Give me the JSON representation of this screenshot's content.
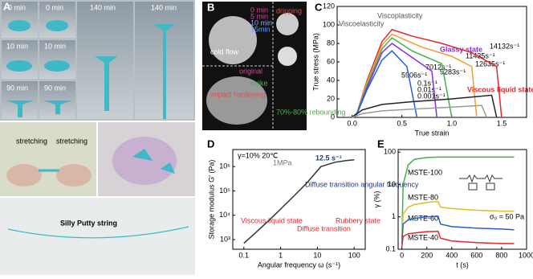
{
  "panels": [
    {
      "label": "A",
      "photo_labels": [
        "0 min",
        "0 min",
        "140 min",
        "140 min",
        "10 min",
        "10 min",
        "90 min",
        "90 min"
      ],
      "annotations": [
        "stretching",
        "stretching",
        "Silly Putty string"
      ]
    },
    {
      "label": "B",
      "annotations": [
        "0 min",
        "5 min",
        "10 min",
        "15min",
        "original",
        "cold flow",
        "impact hardening",
        "strike",
        "dripping",
        "70%-80% rebounding"
      ]
    },
    {
      "label": "C",
      "chart": {
        "type": "line",
        "xlabel": "True strain",
        "ylabel": "True stress (MPa)",
        "xlim": [
          -0.15,
          1.75
        ],
        "ylim": [
          0,
          120
        ],
        "xticks": [
          {
            "value": 0,
            "label": "0.0"
          },
          0.5,
          {
            "value": 1,
            "label": "1.0"
          },
          1.5
        ],
        "yticks": [
          0,
          20,
          40,
          60,
          80,
          100,
          120
        ],
        "annotations": [
          "Viscoelasticity",
          "Viscoplasticity",
          "Glassy state",
          "Viscous liquid state",
          "14132s⁻¹",
          "11435s⁻¹",
          "12635s⁻¹",
          "9283s⁻¹",
          "7012s⁻¹",
          "5906s⁻¹",
          "0.1s⁻¹",
          "0.01s⁻¹",
          "0.001s⁻¹"
        ],
        "series": [
          {
            "color": "#e8262a",
            "x": [
              0,
              0.05,
              0.15,
              0.3,
              0.4,
              0.6,
              0.9,
              1.2,
              1.45,
              1.5
            ],
            "values": [
              0,
              5,
              40,
              82,
              95,
              88,
              80,
              70,
              55,
              0
            ]
          },
          {
            "color": "#f39c34",
            "x": [
              0,
              0.05,
              0.15,
              0.3,
              0.4,
              0.7,
              1.0,
              1.2,
              1.25
            ],
            "values": [
              0,
              5,
              38,
              78,
              90,
              76,
              66,
              55,
              0
            ]
          },
          {
            "color": "#3cb44b",
            "x": [
              0,
              0.05,
              0.15,
              0.3,
              0.4,
              0.6,
              0.9,
              1.0
            ],
            "values": [
              0,
              5,
              35,
              74,
              86,
              72,
              58,
              0
            ]
          },
          {
            "color": "#8a2be2",
            "x": [
              0,
              0.05,
              0.15,
              0.3,
              0.4,
              0.6,
              0.8,
              0.85
            ],
            "values": [
              0,
              4,
              32,
              70,
              80,
              65,
              50,
              0
            ]
          },
          {
            "color": "#2a5fd6",
            "x": [
              0,
              0.05,
              0.15,
              0.3,
              0.4,
              0.55,
              0.65
            ],
            "values": [
              0,
              4,
              30,
              62,
              72,
              55,
              0
            ]
          },
          {
            "color": "#222222",
            "x": [
              0,
              0.1,
              0.3,
              0.6,
              1.0,
              1.4,
              1.45
            ],
            "values": [
              0,
              8,
              14,
              17,
              20,
              24,
              0
            ]
          },
          {
            "color": "#999999",
            "x": [
              0,
              0.1,
              0.3,
              0.6,
              1.0,
              1.3,
              1.35
            ],
            "values": [
              0,
              4,
              7,
              9,
              11,
              13,
              0
            ]
          }
        ]
      }
    },
    {
      "label": "D",
      "chart": {
        "type": "line",
        "xlabel": "Angular frequency ω (s⁻¹)",
        "ylabel": "Storage modulus G′ (Pa)",
        "xlog": true,
        "ylog": true,
        "xlim": [
          0.05,
          200
        ],
        "ylim": [
          400,
          5000000
        ],
        "xticks": [
          0.1,
          1,
          10,
          100
        ],
        "yticks": [
          {
            "value": 1000,
            "label": "10³"
          },
          {
            "value": 10000,
            "label": "10⁴"
          },
          {
            "value": 100000,
            "label": "10⁵"
          },
          {
            "value": 1000000,
            "label": "10⁶"
          }
        ],
        "annotations": [
          "γ=10% 20℃",
          "1MPa",
          "12.5 s⁻¹",
          "Diffuse transition angular frequency",
          "Viscous liquid state",
          "Diffuse transition",
          "Rubbery state"
        ],
        "series": [
          {
            "color": "#333333",
            "x": [
              0.1,
              0.2,
              0.5,
              1,
              2,
              5,
              12.5,
              30,
              60,
              100
            ],
            "values": [
              700,
              1800,
              6500,
              18000,
              50000,
              200000,
              1000000,
              1500000,
              1750000,
              1900000
            ]
          }
        ]
      }
    },
    {
      "label": "E",
      "chart": {
        "type": "line",
        "xlabel": "t (s)",
        "ylabel": "γ (%)",
        "ylog": true,
        "xlim": [
          -30,
          1000
        ],
        "ylim": [
          0.1,
          120
        ],
        "xticks": [
          0,
          200,
          400,
          600,
          800,
          1000
        ],
        "yticks": [
          0.1,
          1,
          10,
          100
        ],
        "annotations": [
          "MSTE-100",
          "MSTE-80",
          "MSTE-60",
          "MSTE-40",
          "σ₀ = 50 Pa"
        ],
        "series": [
          {
            "color": "#3cb44b",
            "x": [
              0,
              10,
              50,
              100,
              200,
              300,
              400,
              600,
              800,
              900
            ],
            "values": [
              0.2,
              10,
              40,
              60,
              68,
              70,
              70,
              70,
              70,
              70
            ]
          },
          {
            "color": "#e0c020",
            "x": [
              0,
              10,
              50,
              100,
              200,
              290,
              310,
              400,
              600,
              800,
              900
            ],
            "values": [
              0.2,
              1.2,
              2,
              2.4,
              2.8,
              3,
              2,
              1.8,
              1.6,
              1.5,
              1.5
            ]
          },
          {
            "color": "#2a5fd6",
            "x": [
              0,
              10,
              50,
              100,
              200,
              290,
              310,
              400,
              600,
              800,
              900
            ],
            "values": [
              0.15,
              0.6,
              0.8,
              0.9,
              1,
              1.05,
              0.6,
              0.5,
              0.45,
              0.42,
              0.4
            ]
          },
          {
            "color": "#e8262a",
            "x": [
              0,
              10,
              50,
              100,
              200,
              290,
              310,
              400,
              600,
              800,
              900
            ],
            "values": [
              0.12,
              0.25,
              0.3,
              0.32,
              0.35,
              0.36,
              0.22,
              0.18,
              0.16,
              0.15,
              0.15
            ]
          }
        ]
      }
    }
  ]
}
